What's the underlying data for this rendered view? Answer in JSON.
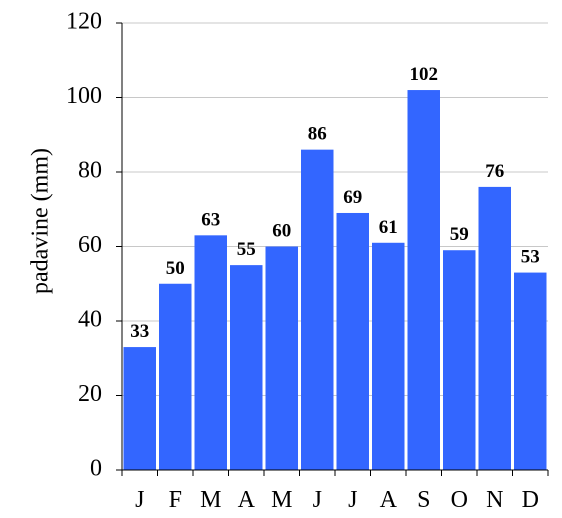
{
  "chart_data": {
    "type": "bar",
    "categories": [
      "J",
      "F",
      "M",
      "A",
      "M",
      "J",
      "J",
      "A",
      "S",
      "O",
      "N",
      "D"
    ],
    "values": [
      33,
      50,
      63,
      55,
      60,
      86,
      69,
      61,
      102,
      59,
      76,
      53
    ],
    "data_labels": [
      "33",
      "50",
      "63",
      "55",
      "60",
      "86",
      "69",
      "61",
      "102",
      "59",
      "76",
      "53"
    ],
    "ylabel": "padavine (mm)",
    "ylim": [
      0,
      120
    ],
    "yticks": [
      0,
      20,
      40,
      60,
      80,
      100,
      120
    ],
    "grid": "horizontal",
    "colors": {
      "bar": "#3366ff",
      "grid": "#c8c8c8",
      "axis": "#000000"
    }
  }
}
